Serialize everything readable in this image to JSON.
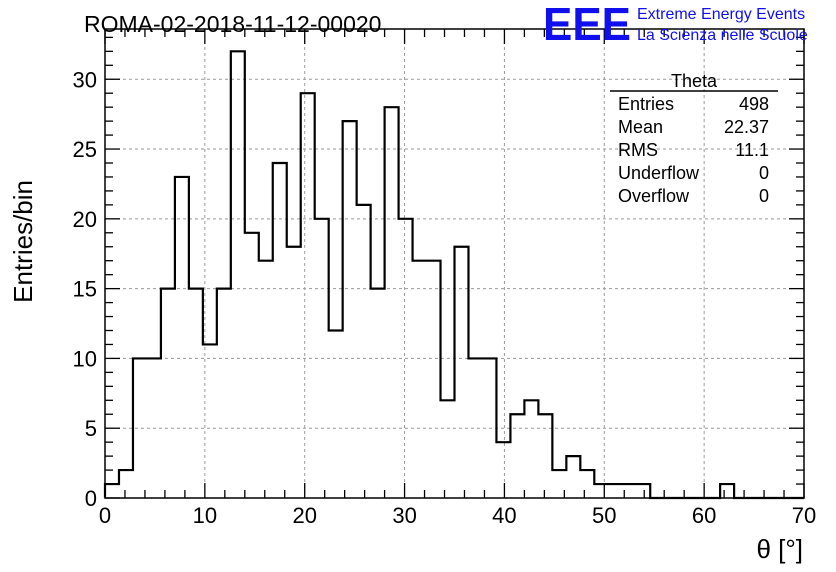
{
  "chart_data": {
    "type": "bar",
    "title": "ROMA-02-2018-11-12-00020",
    "xlabel": "θ [°]",
    "ylabel": "Entries/bin",
    "xlim": [
      0,
      70
    ],
    "ylim": [
      0,
      33.6
    ],
    "xticks": [
      0,
      10,
      20,
      30,
      40,
      50,
      60,
      70
    ],
    "yticks": [
      0,
      5,
      10,
      15,
      20,
      25,
      30
    ],
    "grid": true,
    "bin_width": 1.4,
    "bin_start": 0,
    "values": [
      1,
      2,
      10,
      10,
      15,
      23,
      15,
      11,
      15,
      32,
      19,
      17,
      24,
      18,
      29,
      20,
      12,
      27,
      21,
      15,
      28,
      20,
      17,
      17,
      7,
      18,
      10,
      10,
      4,
      6,
      7,
      6,
      2,
      3,
      2,
      1,
      1,
      1,
      1,
      0,
      0,
      0,
      0,
      0,
      1,
      0,
      0,
      0,
      0,
      0
    ],
    "stats": {
      "name": "Theta",
      "rows": [
        {
          "label": "Entries",
          "value": "498"
        },
        {
          "label": "Mean",
          "value": "22.37"
        },
        {
          "label": "RMS",
          "value": "11.1"
        },
        {
          "label": "Underflow",
          "value": "0"
        },
        {
          "label": "Overflow",
          "value": "0"
        }
      ]
    }
  },
  "logo": {
    "mark": "EEE",
    "line1": "Extreme Energy Events",
    "line2": "La Scienza nelle Scuole",
    "color": "#1010ee"
  }
}
